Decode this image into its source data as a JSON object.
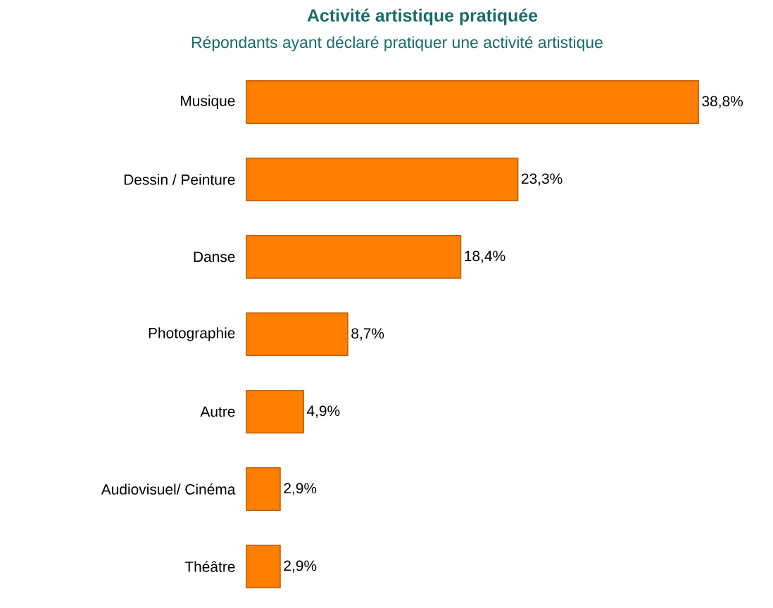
{
  "chart_data": {
    "type": "bar",
    "orientation": "horizontal",
    "title": "Activité artistique pratiquée",
    "subtitle": "Répondants ayant déclaré pratiquer une activité artistique",
    "categories": [
      "Musique",
      "Dessin / Peinture",
      "Danse",
      "Photographie",
      "Autre",
      "Audiovisuel/ Cinéma",
      "Théâtre"
    ],
    "values": [
      38.8,
      23.3,
      18.4,
      8.7,
      4.9,
      2.9,
      2.9
    ],
    "value_labels": [
      "38,8%",
      "23,3%",
      "18,4%",
      "8,7%",
      "4,9%",
      "2,9%",
      "2,9%"
    ],
    "color": "#ff7f00"
  }
}
